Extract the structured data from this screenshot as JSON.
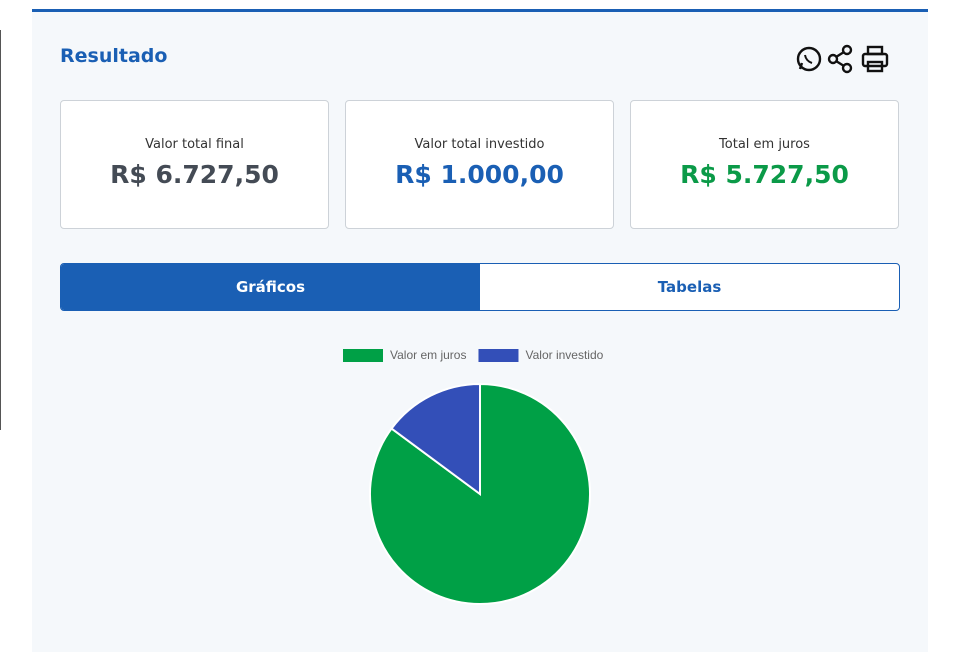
{
  "header": {
    "title": "Resultado"
  },
  "cards": [
    {
      "label": "Valor total final",
      "value": "R$ 6.727,50",
      "color": "#444b55"
    },
    {
      "label": "Valor total investido",
      "value": "R$ 1.000,00",
      "color": "#1a5fb4"
    },
    {
      "label": "Total em juros",
      "value": "R$ 5.727,50",
      "color": "#0b9a48"
    }
  ],
  "tabs": [
    "Gráficos",
    "Tabelas"
  ],
  "chart_data": {
    "type": "pie",
    "categories": [
      "Valor em juros",
      "Valor investido"
    ],
    "values": [
      5727.5,
      1000
    ],
    "colors": [
      "#00a046",
      "#334fb8"
    ],
    "legend": "top"
  }
}
